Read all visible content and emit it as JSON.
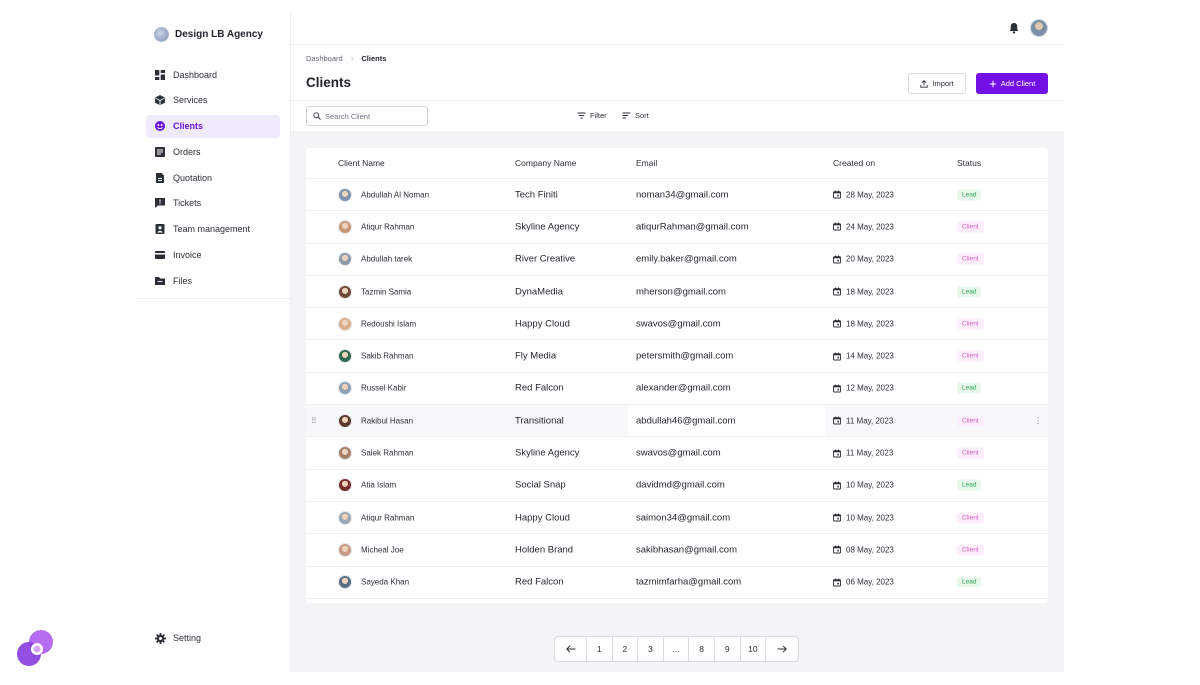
{
  "brand": {
    "name": "Design LB Agency"
  },
  "sidebar": {
    "items": [
      {
        "label": "Dashboard",
        "icon": "dashboard-icon",
        "active": false
      },
      {
        "label": "Services",
        "icon": "cube-icon",
        "active": false
      },
      {
        "label": "Clients",
        "icon": "clients-icon",
        "active": true
      },
      {
        "label": "Orders",
        "icon": "orders-icon",
        "active": false
      },
      {
        "label": "Quotation",
        "icon": "document-icon",
        "active": false
      },
      {
        "label": "Tickets",
        "icon": "ticket-icon",
        "active": false
      },
      {
        "label": "Team management",
        "icon": "team-icon",
        "active": false
      },
      {
        "label": "Invoice",
        "icon": "invoice-icon",
        "active": false
      },
      {
        "label": "Files",
        "icon": "folder-icon",
        "active": false
      }
    ],
    "setting_label": "Setting"
  },
  "breadcrumb": {
    "parent": "Dashboard",
    "current": "Clients"
  },
  "page": {
    "title": "Clients"
  },
  "actions": {
    "import_label": "Import",
    "add_label": "Add Client"
  },
  "toolbar": {
    "search_placeholder": "Search Client",
    "filter_label": "Filter",
    "sort_label": "Sort"
  },
  "table": {
    "headers": {
      "name": "Client Name",
      "company": "Company Name",
      "email": "Email",
      "created": "Created on",
      "status": "Status"
    },
    "rows": [
      {
        "name": "Abdullah Al Noman",
        "company": "Tech Finiti",
        "email": "noman34@gmail.com",
        "created": "28 May, 2023",
        "status": "Lead"
      },
      {
        "name": "Atiqur Rahman",
        "company": "Skyline Agency",
        "email": "atiqurRahman@gmail.com",
        "created": "24 May, 2023",
        "status": "Client"
      },
      {
        "name": "Abdullah tarek",
        "company": "River Creative",
        "email": "emily.baker@gmail.com",
        "created": "20 May, 2023",
        "status": "Client"
      },
      {
        "name": "Tazmin Samia",
        "company": "DynaMedia",
        "email": "mherson@gmail.com",
        "created": "18 May, 2023",
        "status": "Lead"
      },
      {
        "name": "Redoushi Islam",
        "company": "Happy Cloud",
        "email": "swavos@gmail.com",
        "created": "18 May, 2023",
        "status": "Client"
      },
      {
        "name": "Sakib Rahman",
        "company": "Fly Media",
        "email": "petersmith@gmail.com",
        "created": "14 May, 2023",
        "status": "Client"
      },
      {
        "name": "Russel Kabir",
        "company": "Red Falcon",
        "email": "alexander@gmail.com",
        "created": "12 May, 2023",
        "status": "Lead"
      },
      {
        "name": "Rakibul Hasan",
        "company": "Transitional",
        "email": "abdullah46@gmail.com",
        "created": "11 May, 2023",
        "status": "Client"
      },
      {
        "name": "Salek Rahman",
        "company": "Skyline Agency",
        "email": "swavos@gmail.com",
        "created": "11 May, 2023",
        "status": "Client"
      },
      {
        "name": "Atia Islam",
        "company": "Social Snap",
        "email": "davidmd@gmail.com",
        "created": "10 May, 2023",
        "status": "Lead"
      },
      {
        "name": "Atiqur Rahman",
        "company": "Happy Cloud",
        "email": "saimon34@gmail.com",
        "created": "10 May, 2023",
        "status": "Client"
      },
      {
        "name": "Micheal Joe",
        "company": "Holden Brand",
        "email": "sakibhasan@gmail.com",
        "created": "08 May, 2023",
        "status": "Client"
      },
      {
        "name": "Sayeda Khan",
        "company": "Red Falcon",
        "email": "tazmimfarha@gmail.com",
        "created": "06 May, 2023",
        "status": "Lead"
      }
    ]
  },
  "pagination": {
    "pages": [
      "1",
      "2",
      "3",
      "...",
      "8",
      "9",
      "10"
    ]
  },
  "colors": {
    "accent": "#7210e6",
    "lead": "#2ba152",
    "client": "#d45fc5",
    "content_bg": "#f3f4f6"
  }
}
